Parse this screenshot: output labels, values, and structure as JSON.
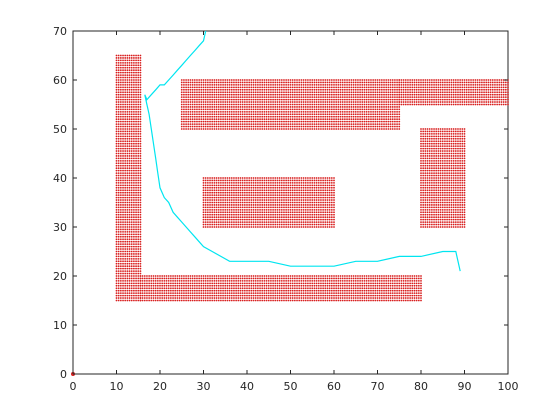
{
  "chart_data": {
    "type": "scatter",
    "title": "",
    "xlabel": "",
    "ylabel": "",
    "xlim": [
      0,
      100
    ],
    "ylim": [
      0,
      70
    ],
    "grid": false,
    "x_ticks": [
      0,
      10,
      20,
      30,
      40,
      50,
      60,
      70,
      80,
      90,
      100
    ],
    "y_ticks": [
      0,
      10,
      20,
      30,
      40,
      50,
      60,
      70
    ],
    "obstacle_point_spacing": 0.5,
    "obstacle_color": "#d81e1e",
    "path_color": "#00e5f0",
    "obstacles": [
      {
        "x_range": [
          10,
          15.5
        ],
        "y_range": [
          15,
          65
        ]
      },
      {
        "x_range": [
          15.5,
          80
        ],
        "y_range": [
          15,
          20
        ]
      },
      {
        "x_range": [
          25,
          75
        ],
        "y_range": [
          50,
          60
        ]
      },
      {
        "x_range": [
          75,
          100
        ],
        "y_range": [
          55,
          60
        ]
      },
      {
        "x_range": [
          30,
          60
        ],
        "y_range": [
          30,
          40
        ]
      },
      {
        "x_range": [
          80,
          90
        ],
        "y_range": [
          30,
          50
        ]
      }
    ],
    "start_point": {
      "x": 0,
      "y": 0
    },
    "path": {
      "x": [
        30.5,
        30,
        29,
        28,
        27,
        26,
        25,
        24,
        23,
        22,
        21,
        20,
        19,
        18,
        17,
        16.5,
        17,
        17.5,
        18,
        18.5,
        19,
        19.5,
        20,
        21,
        22,
        23,
        24,
        25,
        26,
        27,
        28,
        29,
        30,
        32,
        34,
        36,
        38,
        45,
        50,
        55,
        60,
        65,
        70,
        75,
        80,
        85,
        88,
        89
      ],
      "y": [
        70,
        68,
        67,
        66,
        65,
        64,
        63,
        62,
        61,
        60,
        59,
        59,
        58,
        57,
        56,
        57,
        55,
        53,
        50,
        47,
        44,
        41,
        38,
        36,
        35,
        33,
        32,
        31,
        30,
        29,
        28,
        27,
        26,
        25,
        24,
        23,
        23,
        23,
        22,
        22,
        22,
        23,
        23,
        24,
        24,
        25,
        25,
        21
      ]
    }
  }
}
